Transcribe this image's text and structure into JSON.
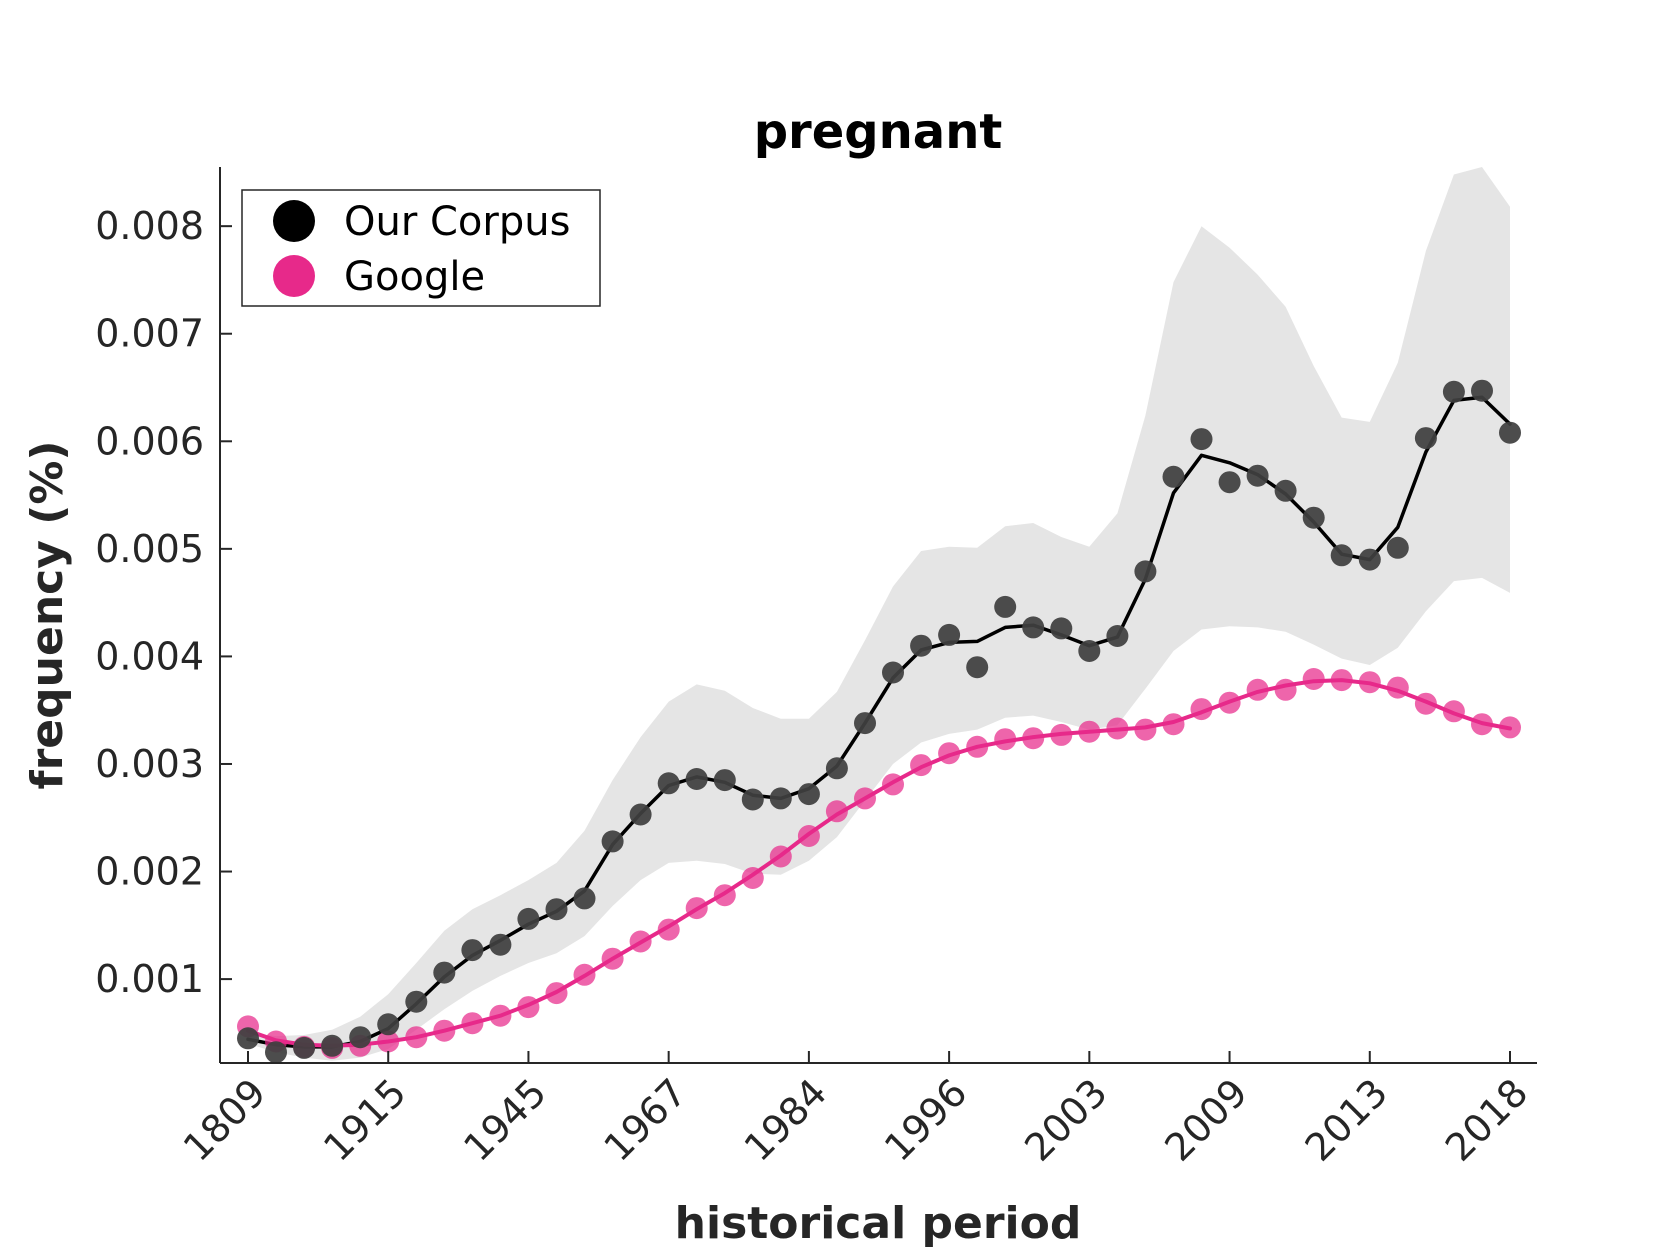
{
  "chart_data": {
    "type": "scatter",
    "title": "pregnant",
    "xlabel": "historical period",
    "ylabel": "frequency (%)",
    "x_tick_labels": [
      "1809",
      "1915",
      "1945",
      "1967",
      "1984",
      "1996",
      "2003",
      "2009",
      "2013",
      "2018"
    ],
    "y_ticks": [
      0.001,
      0.002,
      0.003,
      0.004,
      0.005,
      0.006,
      0.007,
      0.008
    ],
    "ylim": [
      0.00022,
      0.00855
    ],
    "grid": false,
    "legend_position": "top-left",
    "series": [
      {
        "name": "Our Corpus",
        "color": "#000000",
        "marker_color": "#404040",
        "values": [
          0.00045,
          0.00032,
          0.00036,
          0.00038,
          0.00046,
          0.00058,
          0.00079,
          0.00106,
          0.00127,
          0.00132,
          0.00156,
          0.00165,
          0.00175,
          0.00228,
          0.00253,
          0.00282,
          0.00286,
          0.00285,
          0.00267,
          0.00268,
          0.00272,
          0.00296,
          0.00338,
          0.00385,
          0.0041,
          0.0042,
          0.0039,
          0.00446,
          0.00427,
          0.00426,
          0.00405,
          0.00419,
          0.00479,
          0.00567,
          0.00602,
          0.00562,
          0.00568,
          0.00554,
          0.00529,
          0.00494,
          0.0049,
          0.00501,
          0.00603,
          0.00646,
          0.00647,
          0.00608
        ],
        "smoothed": [
          0.00044,
          0.00039,
          0.00037,
          0.00037,
          0.00042,
          0.00054,
          0.00077,
          0.00102,
          0.00122,
          0.00136,
          0.00151,
          0.00163,
          0.00182,
          0.00225,
          0.00254,
          0.0028,
          0.00288,
          0.00283,
          0.00271,
          0.00268,
          0.00277,
          0.00298,
          0.00338,
          0.0038,
          0.00406,
          0.00413,
          0.00414,
          0.00427,
          0.00429,
          0.0042,
          0.0041,
          0.00418,
          0.00472,
          0.00552,
          0.00587,
          0.0058,
          0.00569,
          0.00551,
          0.00525,
          0.00495,
          0.0049,
          0.0052,
          0.0059,
          0.00638,
          0.00641,
          0.00616
        ],
        "band_upper": [
          0.0005,
          0.00047,
          0.00048,
          0.00053,
          0.00065,
          0.00086,
          0.00115,
          0.00145,
          0.00165,
          0.00178,
          0.00192,
          0.00208,
          0.00238,
          0.00285,
          0.00325,
          0.00358,
          0.00374,
          0.00368,
          0.00352,
          0.00342,
          0.00342,
          0.00367,
          0.00415,
          0.00465,
          0.00498,
          0.00502,
          0.00501,
          0.00521,
          0.00524,
          0.00511,
          0.00502,
          0.00533,
          0.00624,
          0.00748,
          0.008,
          0.0078,
          0.00755,
          0.00725,
          0.0067,
          0.00622,
          0.00618,
          0.00673,
          0.00777,
          0.00848,
          0.00855,
          0.00818
        ],
        "band_lower": [
          0.0004,
          0.00032,
          0.00027,
          0.00024,
          0.00027,
          0.00035,
          0.00053,
          0.00072,
          0.00089,
          0.00103,
          0.00115,
          0.00124,
          0.0014,
          0.00168,
          0.00192,
          0.00208,
          0.0021,
          0.00207,
          0.00198,
          0.00197,
          0.0021,
          0.00232,
          0.00266,
          0.003,
          0.0032,
          0.00328,
          0.00332,
          0.00343,
          0.00345,
          0.00339,
          0.00332,
          0.00336,
          0.0037,
          0.00405,
          0.00425,
          0.00428,
          0.00427,
          0.00423,
          0.00411,
          0.00398,
          0.00392,
          0.00408,
          0.00442,
          0.0047,
          0.00473,
          0.00459
        ]
      },
      {
        "name": "Google",
        "color": "#e7298a",
        "values": [
          0.00056,
          0.00042,
          0.00037,
          0.00036,
          0.00038,
          0.00042,
          0.00046,
          0.00052,
          0.00059,
          0.00066,
          0.00074,
          0.00087,
          0.00104,
          0.00119,
          0.00135,
          0.00146,
          0.00166,
          0.00178,
          0.00194,
          0.00214,
          0.00233,
          0.00256,
          0.00268,
          0.00281,
          0.00299,
          0.0031,
          0.00316,
          0.00323,
          0.00324,
          0.00327,
          0.0033,
          0.00333,
          0.00332,
          0.00337,
          0.00351,
          0.00357,
          0.00369,
          0.00369,
          0.00379,
          0.00378,
          0.00376,
          0.00371,
          0.00356,
          0.00349,
          0.00337,
          0.00334
        ],
        "smoothed": [
          0.00052,
          0.00043,
          0.00039,
          0.00038,
          0.00039,
          0.00042,
          0.00046,
          0.00052,
          0.00059,
          0.00066,
          0.00076,
          0.00088,
          0.00103,
          0.00119,
          0.00134,
          0.00149,
          0.00165,
          0.0018,
          0.00197,
          0.00215,
          0.00235,
          0.00253,
          0.00268,
          0.00283,
          0.00297,
          0.00308,
          0.00316,
          0.00321,
          0.00325,
          0.00328,
          0.0033,
          0.00332,
          0.00334,
          0.00339,
          0.00348,
          0.00358,
          0.00367,
          0.00373,
          0.00377,
          0.00378,
          0.00375,
          0.00368,
          0.00358,
          0.00347,
          0.00338,
          0.00333
        ]
      }
    ]
  }
}
